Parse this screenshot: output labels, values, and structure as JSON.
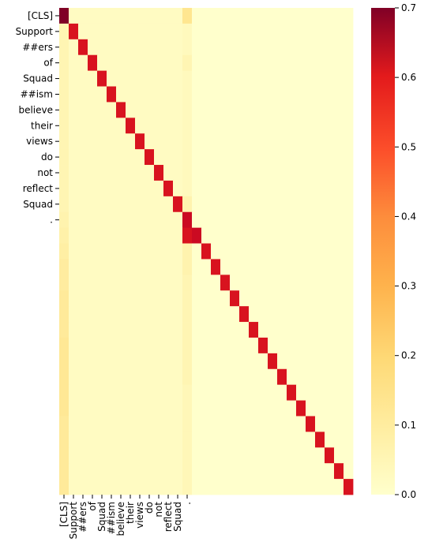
{
  "chart_data": {
    "type": "heatmap",
    "size": 31,
    "colormap": "YlOrRd",
    "vmin": 0.0,
    "vmax": 0.7,
    "tick_labels": [
      "[CLS]",
      "Support",
      "##ers",
      "of",
      "Squad",
      "##ism",
      "believe",
      "their",
      "views",
      "do",
      "not",
      "reflect",
      "Squad",
      "."
    ],
    "diagonal_values": [
      0.7,
      0.55,
      0.55,
      0.55,
      0.55,
      0.55,
      0.55,
      0.55,
      0.55,
      0.55,
      0.55,
      0.55,
      0.55,
      0.58,
      0.58,
      0.55,
      0.55,
      0.55,
      0.55,
      0.55,
      0.55,
      0.55,
      0.55,
      0.55,
      0.55,
      0.55,
      0.55,
      0.55,
      0.55,
      0.55,
      0.55
    ],
    "first_column_values": [
      0.7,
      0.05,
      0.05,
      0.05,
      0.05,
      0.05,
      0.05,
      0.05,
      0.05,
      0.05,
      0.05,
      0.05,
      0.05,
      0.06,
      0.07,
      0.08,
      0.09,
      0.09,
      0.1,
      0.1,
      0.1,
      0.11,
      0.11,
      0.11,
      0.11,
      0.11,
      0.1,
      0.1,
      0.1,
      0.1,
      0.1
    ],
    "period_column_values": [
      0.12,
      0.03,
      0.03,
      0.05,
      0.03,
      0.03,
      0.03,
      0.03,
      0.03,
      0.03,
      0.03,
      0.03,
      0.06,
      0.1,
      0.55,
      0.06,
      0.06,
      0.05,
      0.05,
      0.05,
      0.05,
      0.05,
      0.05,
      0.05,
      0.04,
      0.04,
      0.04,
      0.04,
      0.04,
      0.04,
      0.04
    ],
    "offdiag_token_region_value": 0.02,
    "background_value": 0.0,
    "colorbar": {
      "ticks": [
        0.0,
        0.1,
        0.2,
        0.3,
        0.4,
        0.5,
        0.6,
        0.7
      ],
      "tick_labels": [
        "0.0",
        "0.1",
        "0.2",
        "0.3",
        "0.4",
        "0.5",
        "0.6",
        "0.7"
      ]
    },
    "title": "",
    "xlabel": "",
    "ylabel": ""
  }
}
